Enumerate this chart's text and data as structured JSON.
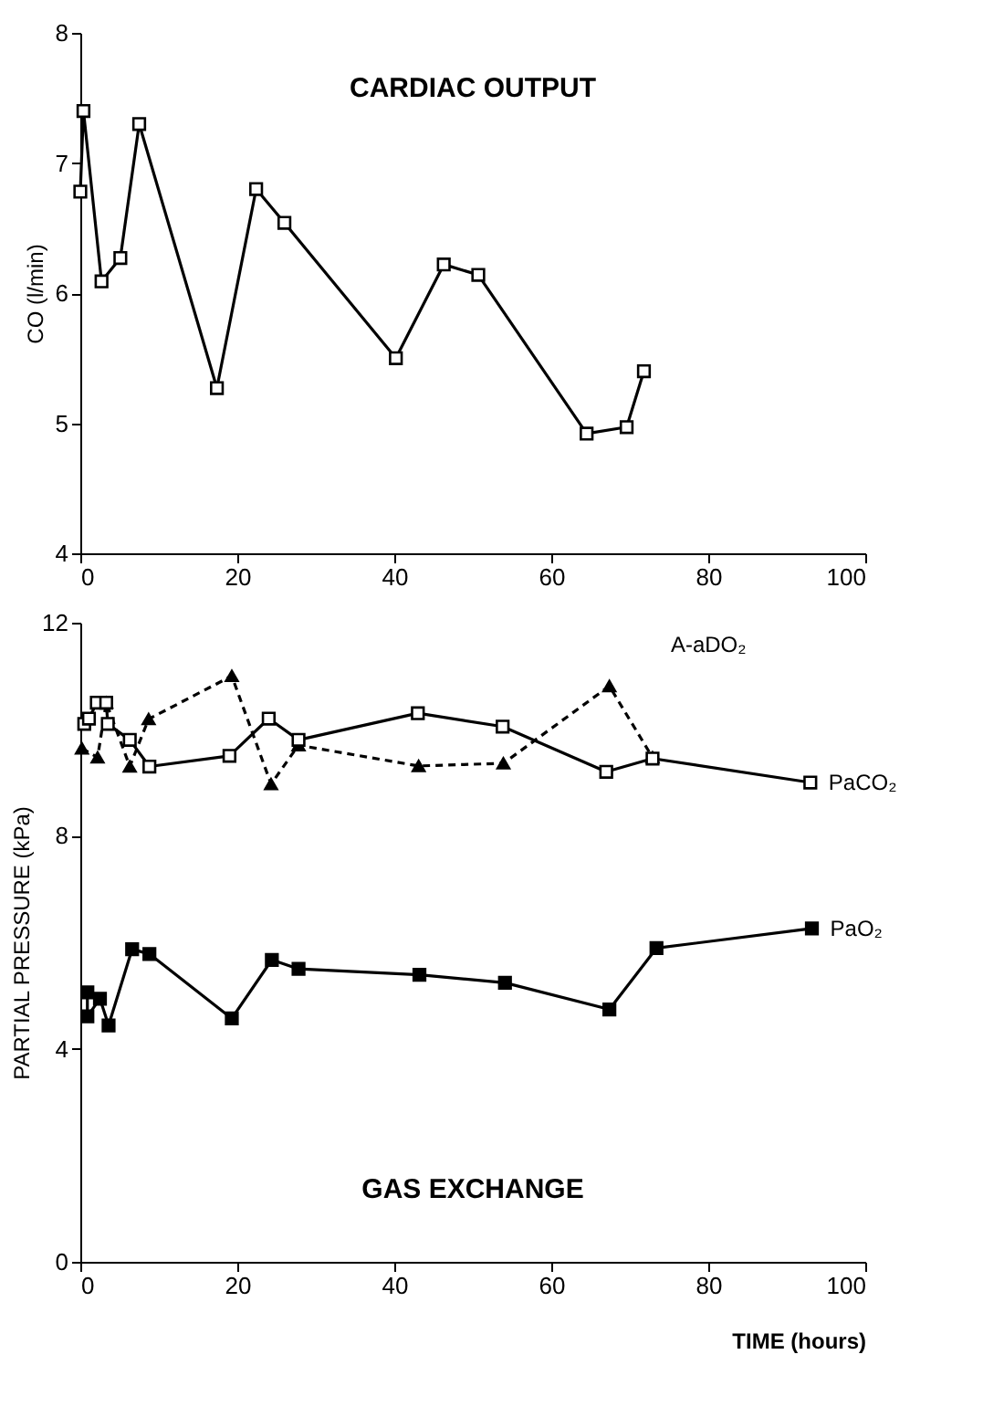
{
  "chart_data": [
    {
      "type": "line",
      "title": "CARDIAC OUTPUT",
      "ylabel": "CO  (l/min)",
      "xlim": [
        0,
        100
      ],
      "xticks": [
        0,
        20,
        40,
        60,
        80,
        100
      ],
      "ylim": [
        4,
        8
      ],
      "yticks": [
        4,
        5,
        6,
        7,
        8
      ],
      "grid": false,
      "legend": false,
      "marker": "square",
      "line_style": "solid",
      "series": [
        {
          "color": "#000000",
          "x": [
            0,
            0.4,
            2.7,
            5.1,
            7.5,
            17.4,
            22.4,
            26,
            40.2,
            46.3,
            50.7,
            64.5,
            69.6,
            71.8
          ],
          "values": [
            6.78,
            7.4,
            6.09,
            6.27,
            7.3,
            5.27,
            6.8,
            6.54,
            5.5,
            6.22,
            6.14,
            4.92,
            4.97,
            5.4
          ]
        }
      ]
    },
    {
      "type": "line",
      "title": "GAS EXCHANGE",
      "xlabel": "TIME (hours)",
      "ylabel": "PARTIAL PRESSURE (kPa)",
      "xlim": [
        0,
        100
      ],
      "xticks": [
        0,
        20,
        40,
        60,
        80,
        100
      ],
      "ylim": [
        0,
        12
      ],
      "yticks": [
        0,
        4,
        8,
        12
      ],
      "grid": false,
      "legend": false,
      "series": [
        {
          "name": "A-aDO₂",
          "color": "#000000",
          "marker": "triangle",
          "line_style": "dashed",
          "x": [
            0.2,
            2.2,
            3.3,
            6.3,
            8.7,
            19.3,
            24.3,
            27.8,
            43.1,
            53.9,
            67.4,
            72.9
          ],
          "values": [
            9.64,
            9.47,
            10.5,
            9.3,
            10.19,
            11.0,
            8.97,
            9.7,
            9.31,
            9.36,
            10.81,
            9.47
          ]
        },
        {
          "name": "PaCO₂",
          "color": "#000000",
          "marker": "square",
          "line_style": "solid",
          "x": [
            0.5,
            1.1,
            2.1,
            3.3,
            3.5,
            6.3,
            8.8,
            19,
            24,
            27.8,
            43,
            53.8,
            67,
            72.9,
            93
          ],
          "values": [
            10.1,
            10.2,
            10.5,
            10.5,
            10.1,
            9.8,
            9.3,
            9.5,
            10.2,
            9.8,
            10.3,
            10.05,
            9.2,
            9.45,
            9.0
          ]
        },
        {
          "name": "PaO₂",
          "color": "#000000",
          "marker": "square",
          "line_style": "solid",
          "x": [
            0.9,
            0.9,
            2.5,
            3.6,
            6.6,
            8.8,
            19.3,
            24.4,
            27.8,
            43.2,
            54.1,
            67.4,
            73.4,
            93.2
          ],
          "values": [
            5.06,
            4.61,
            4.94,
            4.44,
            5.87,
            5.78,
            4.57,
            5.67,
            5.5,
            5.39,
            5.24,
            4.74,
            5.89,
            6.26
          ]
        }
      ]
    }
  ]
}
